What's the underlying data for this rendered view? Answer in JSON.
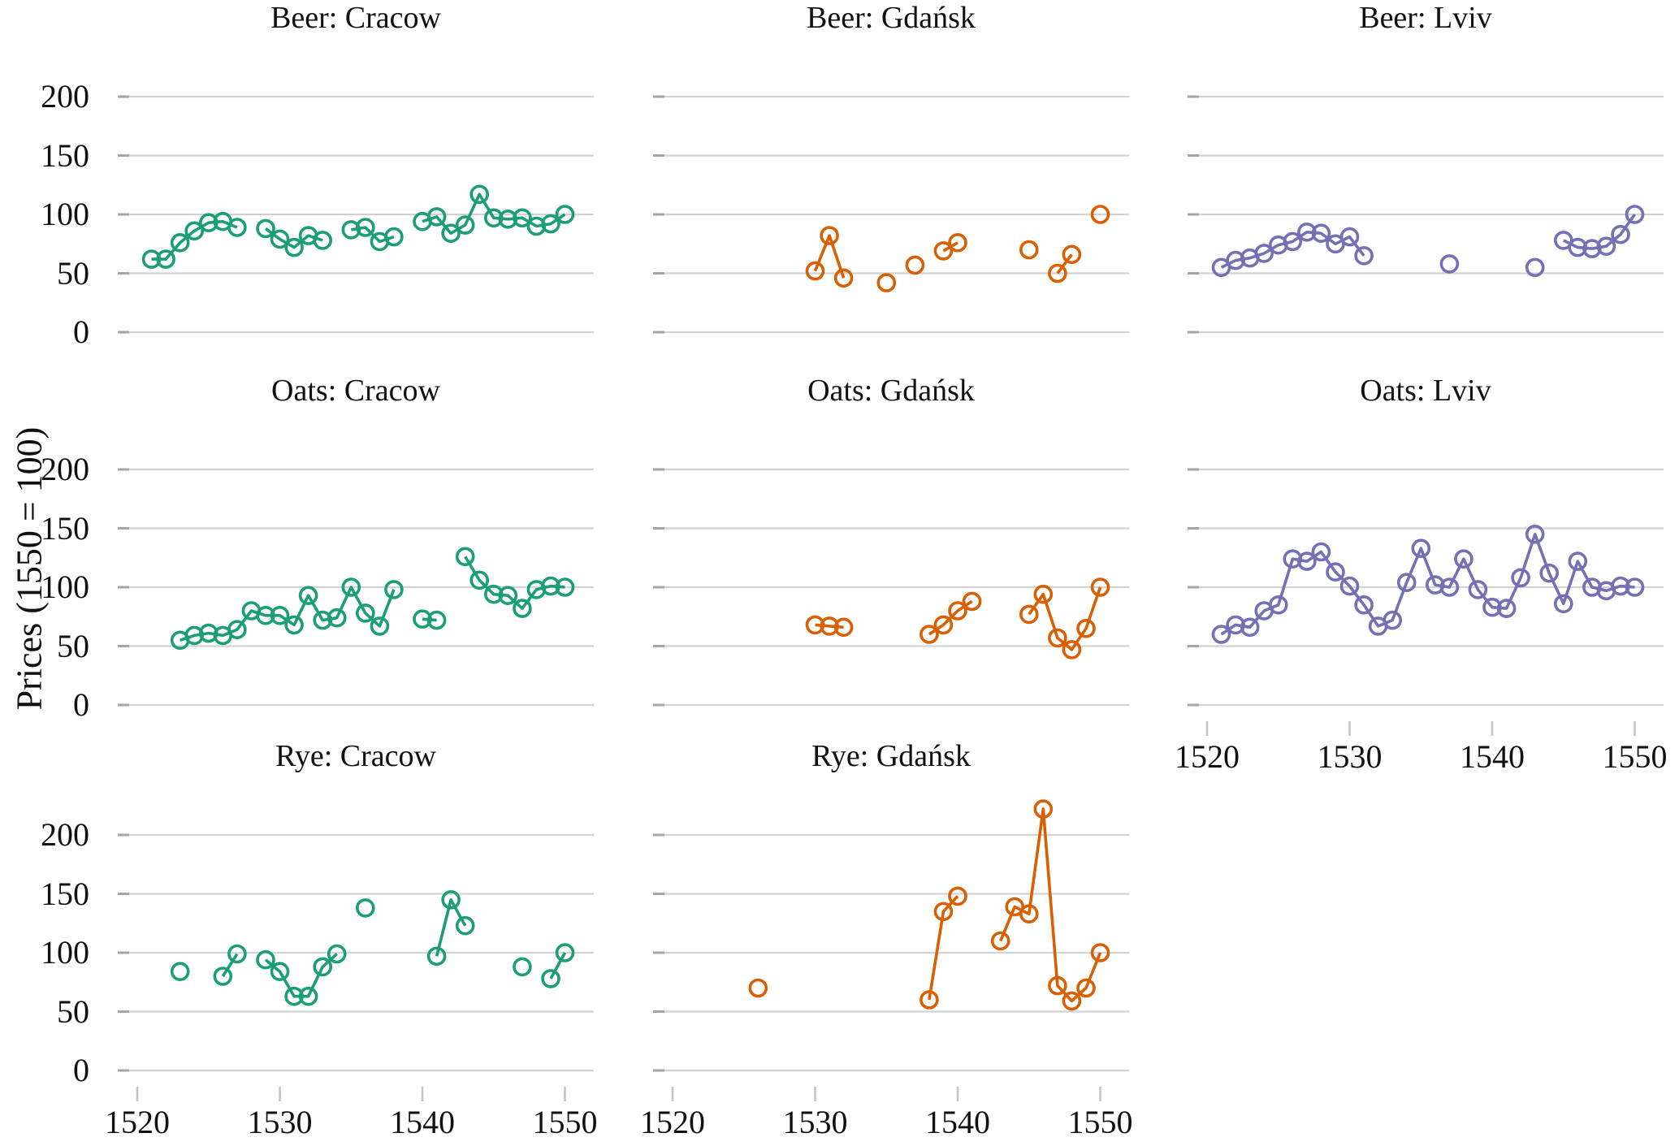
{
  "colors": {
    "cracow": "#1B9E77",
    "gdansk": "#D95F02",
    "lviv": "#7570B3",
    "gridline": "#d2d2d2",
    "y_tick_stub": "#a6a6a6",
    "x_tick_stub": "#c4c4c4",
    "text": "#111111",
    "background": "#ffffff"
  },
  "chart_data": {
    "type": "line",
    "ylabel": "Prices (1550 = 100)",
    "x_ticks": [
      1520,
      1530,
      1540,
      1550
    ],
    "y_ticks": [
      0,
      50,
      100,
      150,
      200
    ],
    "x_range": [
      1518.6,
      1552.1
    ],
    "y_range": [
      0,
      230
    ],
    "grid": "horizontal-only",
    "legend": "none",
    "marker": "open-circle",
    "panels": [
      {
        "title": "Beer: Cracow",
        "row": 0,
        "col": 0,
        "color_key": "cracow",
        "show_y_axis": true,
        "show_x_axis": false,
        "points": [
          [
            1521,
            62
          ],
          [
            1522,
            62
          ],
          [
            1523,
            76
          ],
          [
            1524,
            86
          ],
          [
            1525,
            93
          ],
          [
            1526,
            94
          ],
          [
            1527,
            89
          ],
          [
            1529,
            88
          ],
          [
            1530,
            79
          ],
          [
            1531,
            72
          ],
          [
            1532,
            82
          ],
          [
            1533,
            78
          ],
          [
            1535,
            87
          ],
          [
            1536,
            89
          ],
          [
            1537,
            77
          ],
          [
            1538,
            81
          ],
          [
            1540,
            94
          ],
          [
            1541,
            98
          ],
          [
            1542,
            84
          ],
          [
            1543,
            91
          ],
          [
            1544,
            117
          ],
          [
            1545,
            97
          ],
          [
            1546,
            96
          ],
          [
            1547,
            97
          ],
          [
            1548,
            90
          ],
          [
            1549,
            92
          ],
          [
            1550,
            100
          ]
        ]
      },
      {
        "title": "Beer: Gdańsk",
        "row": 0,
        "col": 1,
        "color_key": "gdansk",
        "show_y_axis": false,
        "show_x_axis": false,
        "points": [
          [
            1530,
            52
          ],
          [
            1531,
            82
          ],
          [
            1532,
            46
          ],
          [
            1535,
            42
          ],
          [
            1537,
            57
          ],
          [
            1539,
            69
          ],
          [
            1540,
            76
          ],
          [
            1545,
            70
          ],
          [
            1547,
            50
          ],
          [
            1548,
            66
          ],
          [
            1550,
            100
          ]
        ]
      },
      {
        "title": "Beer: Lviv",
        "row": 0,
        "col": 2,
        "color_key": "lviv",
        "show_y_axis": false,
        "show_x_axis": false,
        "points": [
          [
            1521,
            55
          ],
          [
            1522,
            61
          ],
          [
            1523,
            63
          ],
          [
            1524,
            67
          ],
          [
            1525,
            74
          ],
          [
            1526,
            77
          ],
          [
            1527,
            85
          ],
          [
            1528,
            84
          ],
          [
            1529,
            75
          ],
          [
            1530,
            81
          ],
          [
            1531,
            65
          ],
          [
            1537,
            58
          ],
          [
            1543,
            55
          ],
          [
            1545,
            78
          ],
          [
            1546,
            72
          ],
          [
            1547,
            71
          ],
          [
            1548,
            73
          ],
          [
            1549,
            83
          ],
          [
            1550,
            100
          ]
        ]
      },
      {
        "title": "Oats: Cracow",
        "row": 1,
        "col": 0,
        "color_key": "cracow",
        "show_y_axis": true,
        "show_x_axis": false,
        "points": [
          [
            1523,
            55
          ],
          [
            1524,
            59
          ],
          [
            1525,
            61
          ],
          [
            1526,
            59
          ],
          [
            1527,
            64
          ],
          [
            1528,
            80
          ],
          [
            1529,
            76
          ],
          [
            1530,
            76
          ],
          [
            1531,
            68
          ],
          [
            1532,
            93
          ],
          [
            1533,
            72
          ],
          [
            1534,
            74
          ],
          [
            1535,
            100
          ],
          [
            1536,
            78
          ],
          [
            1537,
            67
          ],
          [
            1538,
            98
          ],
          [
            1540,
            73
          ],
          [
            1541,
            72
          ],
          [
            1543,
            126
          ],
          [
            1544,
            106
          ],
          [
            1545,
            94
          ],
          [
            1546,
            93
          ],
          [
            1547,
            82
          ],
          [
            1548,
            98
          ],
          [
            1549,
            101
          ],
          [
            1550,
            100
          ]
        ]
      },
      {
        "title": "Oats: Gdańsk",
        "row": 1,
        "col": 1,
        "color_key": "gdansk",
        "show_y_axis": false,
        "show_x_axis": false,
        "points": [
          [
            1530,
            68
          ],
          [
            1531,
            67
          ],
          [
            1532,
            66
          ],
          [
            1538,
            60
          ],
          [
            1539,
            68
          ],
          [
            1540,
            80
          ],
          [
            1541,
            88
          ],
          [
            1545,
            77
          ],
          [
            1546,
            94
          ],
          [
            1547,
            57
          ],
          [
            1548,
            47
          ],
          [
            1549,
            65
          ],
          [
            1550,
            100
          ]
        ]
      },
      {
        "title": "Oats: Lviv",
        "row": 1,
        "col": 2,
        "color_key": "lviv",
        "show_y_axis": false,
        "show_x_axis": true,
        "points": [
          [
            1521,
            60
          ],
          [
            1522,
            68
          ],
          [
            1523,
            66
          ],
          [
            1524,
            80
          ],
          [
            1525,
            85
          ],
          [
            1526,
            124
          ],
          [
            1527,
            122
          ],
          [
            1528,
            130
          ],
          [
            1529,
            113
          ],
          [
            1530,
            101
          ],
          [
            1531,
            85
          ],
          [
            1532,
            67
          ],
          [
            1533,
            72
          ],
          [
            1534,
            104
          ],
          [
            1535,
            133
          ],
          [
            1536,
            102
          ],
          [
            1537,
            100
          ],
          [
            1538,
            124
          ],
          [
            1539,
            98
          ],
          [
            1540,
            83
          ],
          [
            1541,
            82
          ],
          [
            1542,
            108
          ],
          [
            1543,
            145
          ],
          [
            1544,
            112
          ],
          [
            1545,
            86
          ],
          [
            1546,
            122
          ],
          [
            1547,
            100
          ],
          [
            1548,
            97
          ],
          [
            1549,
            101
          ],
          [
            1550,
            100
          ]
        ]
      },
      {
        "title": "Rye: Cracow",
        "row": 2,
        "col": 0,
        "color_key": "cracow",
        "show_y_axis": true,
        "show_x_axis": true,
        "points": [
          [
            1523,
            84
          ],
          [
            1526,
            80
          ],
          [
            1527,
            99
          ],
          [
            1529,
            94
          ],
          [
            1530,
            84
          ],
          [
            1531,
            63
          ],
          [
            1532,
            63
          ],
          [
            1533,
            88
          ],
          [
            1534,
            99
          ],
          [
            1536,
            138
          ],
          [
            1541,
            97
          ],
          [
            1542,
            145
          ],
          [
            1543,
            123
          ],
          [
            1547,
            88
          ],
          [
            1549,
            78
          ],
          [
            1550,
            100
          ]
        ]
      },
      {
        "title": "Rye: Gdańsk",
        "row": 2,
        "col": 1,
        "color_key": "gdansk",
        "show_y_axis": false,
        "show_x_axis": true,
        "points": [
          [
            1526,
            70
          ],
          [
            1538,
            60
          ],
          [
            1539,
            135
          ],
          [
            1540,
            148
          ],
          [
            1543,
            110
          ],
          [
            1544,
            139
          ],
          [
            1545,
            133
          ],
          [
            1546,
            222
          ],
          [
            1547,
            72
          ],
          [
            1548,
            59
          ],
          [
            1549,
            70
          ],
          [
            1550,
            100
          ]
        ]
      }
    ]
  }
}
